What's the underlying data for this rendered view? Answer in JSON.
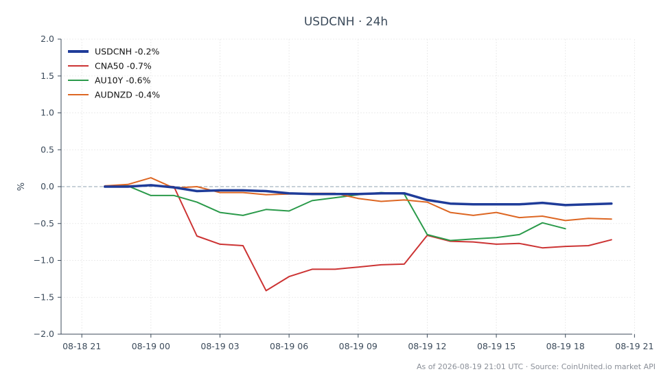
{
  "chart_data": {
    "type": "line",
    "title": "USDCNH · 24h",
    "ylabel": "%",
    "xlabel": "",
    "ylim": [
      -2.0,
      2.0
    ],
    "y_ticks": [
      "2.0",
      "1.5",
      "1.0",
      "0.5",
      "0.0",
      "−0.5",
      "−1.0",
      "−1.5",
      "−2.0"
    ],
    "y_tick_values": [
      2.0,
      1.5,
      1.0,
      0.5,
      0.0,
      -0.5,
      -1.0,
      -1.5,
      -2.0
    ],
    "x_ticks": [
      "08-18 21",
      "08-19 00",
      "08-19 03",
      "08-19 06",
      "08-19 09",
      "08-19 12",
      "08-19 15",
      "08-19 18",
      "08-19 21"
    ],
    "x_tick_hours": [
      -3,
      0,
      3,
      6,
      9,
      12,
      15,
      18,
      21
    ],
    "xlim_hours": [
      -3.9,
      20.9
    ],
    "grid": true,
    "zero_line": true,
    "legend_position": "top-left",
    "series": [
      {
        "name": "USDCNH -0.2%",
        "color": "#1f3c99",
        "emphasis": true,
        "x_hours": [
          -2,
          -1,
          0,
          1,
          2,
          3,
          4,
          5,
          6,
          7,
          8,
          9,
          10,
          11,
          12,
          13,
          14,
          15,
          16,
          17,
          18,
          19,
          20
        ],
        "values": [
          0.0,
          0.0,
          0.02,
          -0.01,
          -0.06,
          -0.05,
          -0.05,
          -0.06,
          -0.09,
          -0.1,
          -0.1,
          -0.1,
          -0.09,
          -0.09,
          -0.18,
          -0.23,
          -0.24,
          -0.24,
          -0.24,
          -0.22,
          -0.25,
          -0.24,
          -0.23
        ]
      },
      {
        "name": "CNA50 -0.7%",
        "color": "#cc3333",
        "emphasis": false,
        "x_hours": [
          -2,
          -1,
          0,
          1,
          2,
          3,
          4,
          5,
          6,
          7,
          8,
          9,
          10,
          11,
          12,
          13,
          14,
          15,
          16,
          17,
          18,
          19,
          20
        ],
        "values": [
          0.01,
          0.01,
          0.02,
          0.0,
          -0.67,
          -0.78,
          -0.8,
          -1.41,
          -1.22,
          -1.12,
          -1.12,
          -1.09,
          -1.06,
          -1.05,
          -0.66,
          -0.74,
          -0.75,
          -0.78,
          -0.77,
          -0.83,
          -0.81,
          -0.8,
          -0.72
        ]
      },
      {
        "name": "AU10Y -0.6%",
        "color": "#2a9a4a",
        "emphasis": false,
        "x_hours": [
          -2,
          -1,
          0,
          1,
          2,
          3,
          4,
          5,
          6,
          7,
          8,
          9,
          10,
          11,
          12,
          13,
          14,
          15,
          16,
          17,
          18
        ],
        "values": [
          0.0,
          0.01,
          -0.12,
          -0.12,
          -0.21,
          -0.35,
          -0.39,
          -0.31,
          -0.33,
          -0.19,
          -0.15,
          -0.11,
          -0.08,
          -0.1,
          -0.65,
          -0.73,
          -0.71,
          -0.69,
          -0.65,
          -0.49,
          -0.57
        ]
      },
      {
        "name": "AUDNZD -0.4%",
        "color": "#dd6622",
        "emphasis": false,
        "x_hours": [
          -2,
          -1,
          0,
          1,
          2,
          3,
          4,
          5,
          6,
          7,
          8,
          9,
          10,
          11,
          12,
          13,
          14,
          15,
          16,
          17,
          18,
          19,
          20
        ],
        "values": [
          0.01,
          0.03,
          0.12,
          -0.02,
          0.0,
          -0.08,
          -0.08,
          -0.11,
          -0.1,
          -0.09,
          -0.09,
          -0.16,
          -0.2,
          -0.18,
          -0.21,
          -0.35,
          -0.39,
          -0.35,
          -0.42,
          -0.4,
          -0.46,
          -0.43,
          -0.44
        ]
      }
    ]
  },
  "footer": {
    "text": "As of 2026-08-19 21:01 UTC · Source: CoinUnited.io market API"
  }
}
